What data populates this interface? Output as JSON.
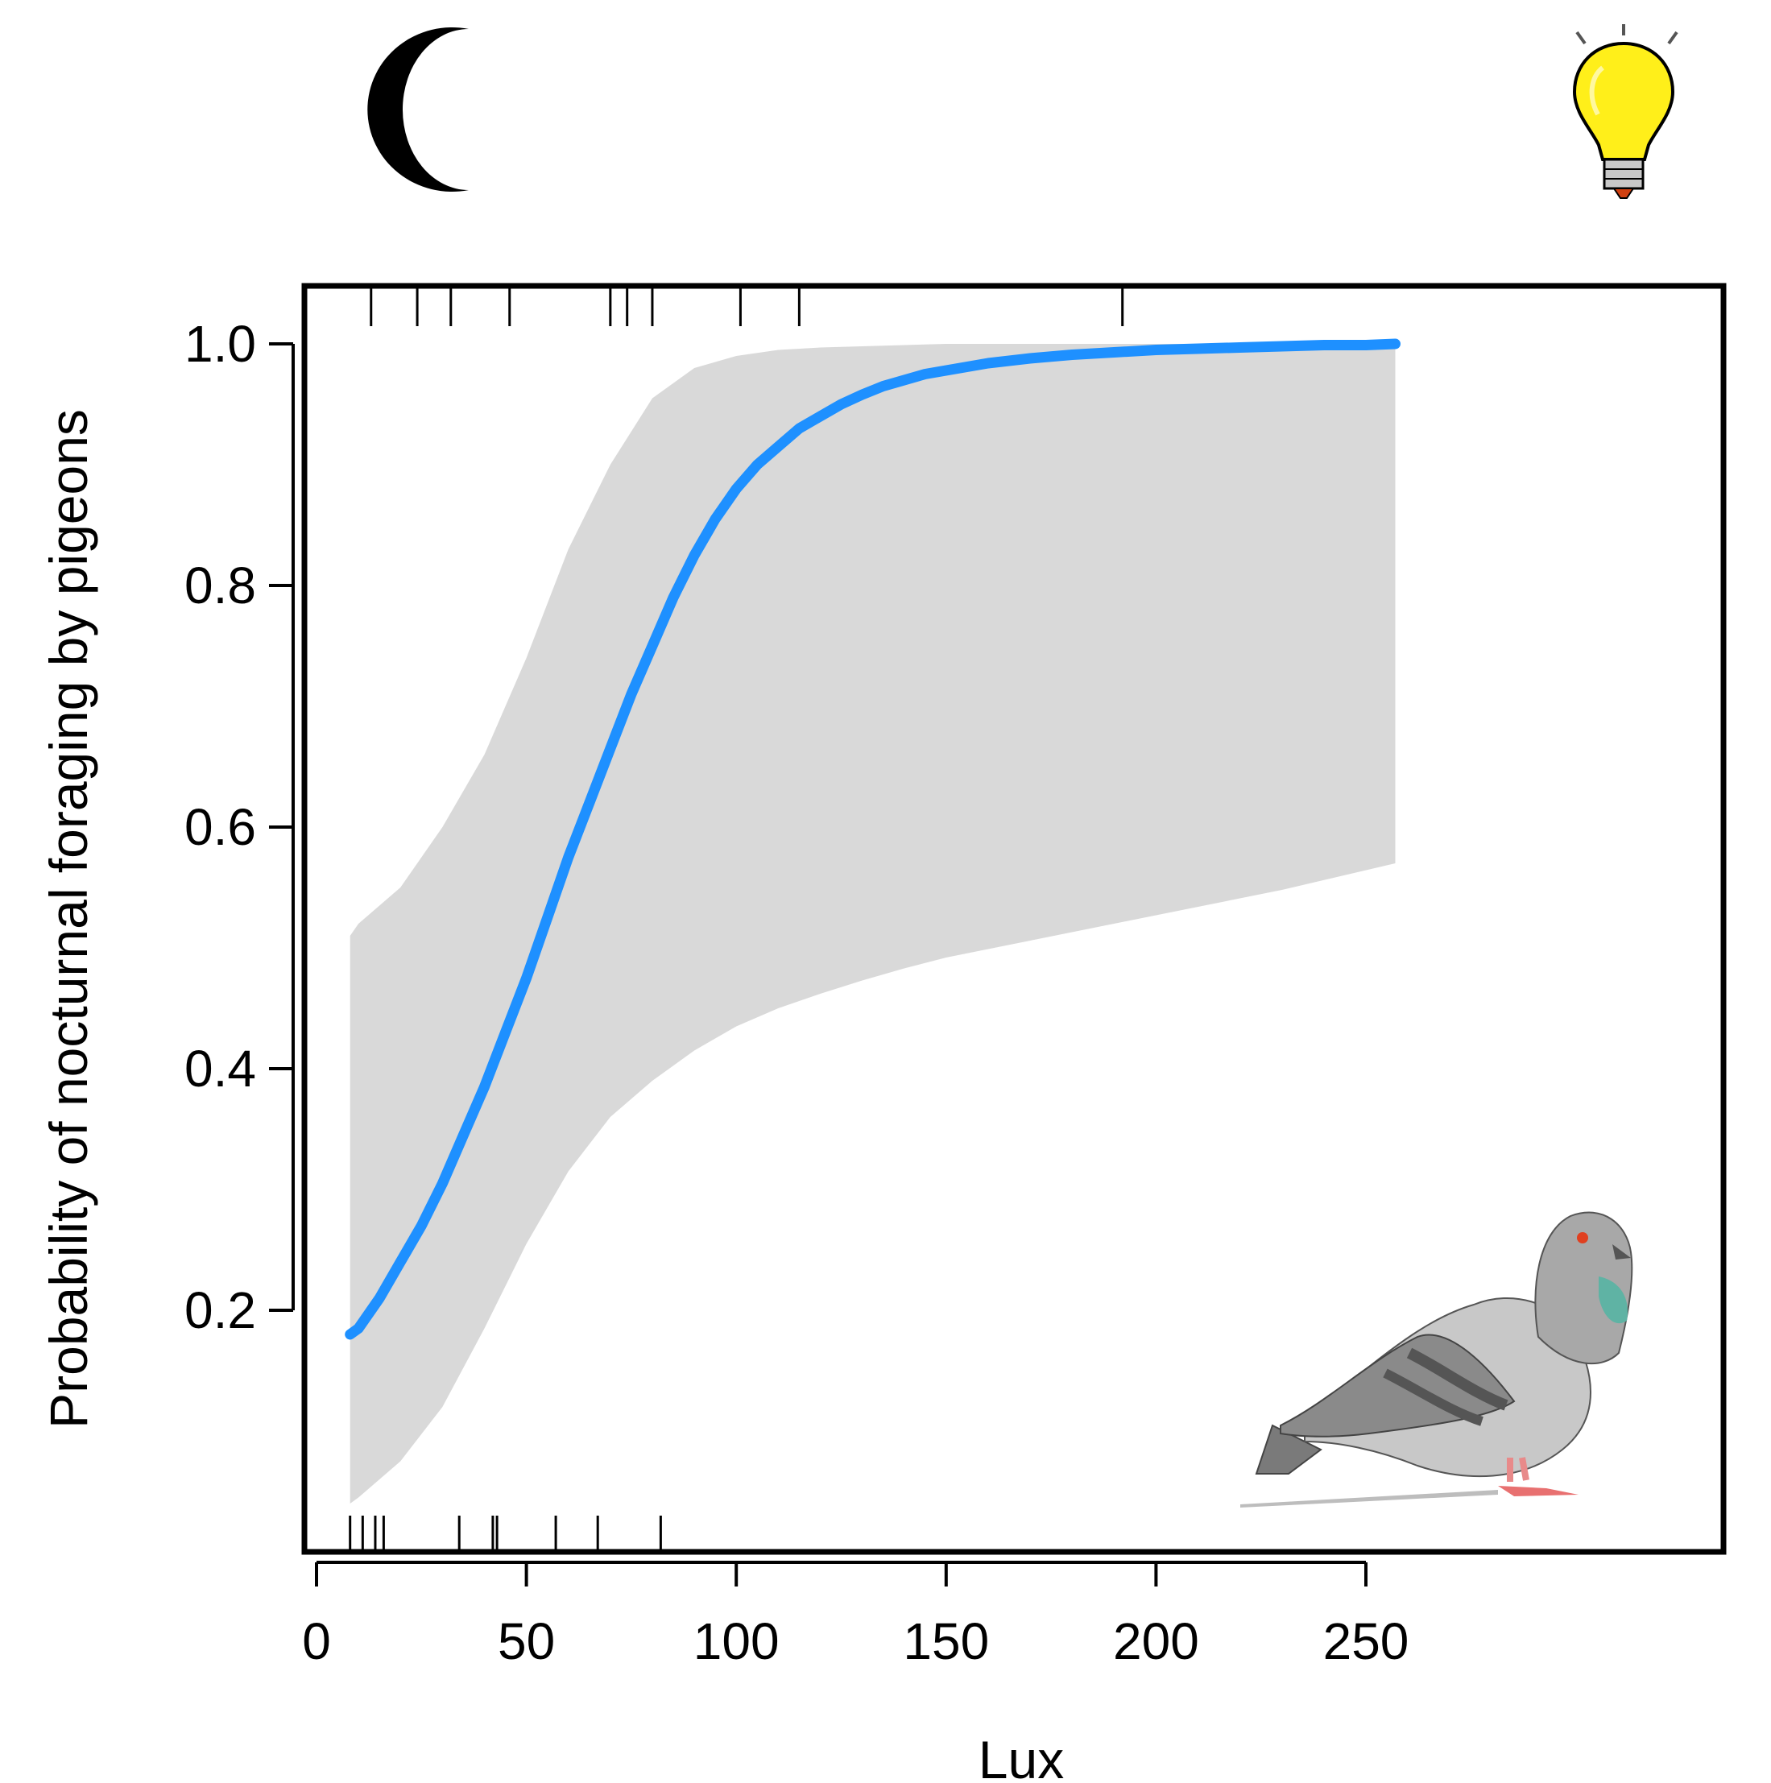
{
  "chart_data": {
    "type": "line",
    "title": "",
    "xlabel": "Lux",
    "ylabel": "Probability of nocturnal foraging by pigeons",
    "xlim": [
      -2,
      267
    ],
    "ylim": [
      0.0,
      1.05
    ],
    "x_ticks": [
      0,
      50,
      100,
      150,
      200,
      250
    ],
    "x_tick_labels": [
      "0",
      "50",
      "100",
      "150",
      "200",
      "250"
    ],
    "y_ticks": [
      0.2,
      0.4,
      0.6,
      0.8,
      1.0
    ],
    "y_tick_labels": [
      "0.2",
      "0.4",
      "0.6",
      "0.8",
      "1.0"
    ],
    "grid": false,
    "legend": "none",
    "series": [
      {
        "color": "#1e90ff",
        "x": [
          8,
          10,
          15,
          20,
          25,
          30,
          35,
          40,
          45,
          50,
          55,
          60,
          65,
          70,
          75,
          80,
          85,
          90,
          95,
          100,
          105,
          110,
          115,
          120,
          125,
          130,
          135,
          140,
          145,
          150,
          160,
          170,
          180,
          190,
          200,
          210,
          220,
          230,
          240,
          250,
          257
        ],
        "y": [
          0.18,
          0.185,
          0.21,
          0.24,
          0.27,
          0.305,
          0.345,
          0.385,
          0.43,
          0.475,
          0.525,
          0.575,
          0.62,
          0.665,
          0.71,
          0.75,
          0.79,
          0.825,
          0.855,
          0.88,
          0.9,
          0.915,
          0.93,
          0.94,
          0.95,
          0.958,
          0.965,
          0.97,
          0.975,
          0.978,
          0.984,
          0.988,
          0.991,
          0.993,
          0.995,
          0.996,
          0.997,
          0.998,
          0.999,
          0.999,
          1.0
        ]
      }
    ],
    "confidence_band": {
      "color": "#d9d9d9",
      "x": [
        8,
        10,
        20,
        30,
        40,
        50,
        60,
        70,
        80,
        90,
        100,
        110,
        120,
        130,
        140,
        150,
        170,
        200,
        230,
        257
      ],
      "lower": [
        0.04,
        0.045,
        0.075,
        0.12,
        0.185,
        0.255,
        0.315,
        0.36,
        0.39,
        0.415,
        0.435,
        0.45,
        0.462,
        0.473,
        0.483,
        0.492,
        0.506,
        0.527,
        0.548,
        0.57
      ],
      "upper": [
        0.51,
        0.52,
        0.55,
        0.6,
        0.66,
        0.74,
        0.83,
        0.9,
        0.955,
        0.98,
        0.99,
        0.995,
        0.997,
        0.998,
        0.999,
        1.0,
        1.0,
        1.0,
        1.0,
        1.0
      ]
    },
    "rug_top": [
      13,
      24,
      32,
      46,
      70,
      74,
      80,
      101,
      115,
      192
    ],
    "rug_bottom": [
      8,
      11,
      14,
      16,
      34,
      42,
      43,
      57,
      67,
      82
    ]
  },
  "icons": {
    "top_left": "moon-icon",
    "top_right": "light-bulb-icon",
    "bottom_right": "pigeon-icon"
  }
}
